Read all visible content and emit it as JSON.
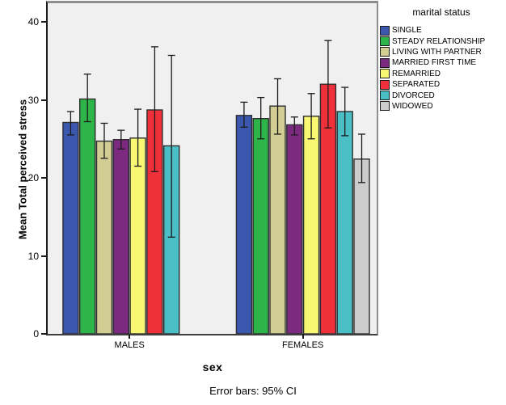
{
  "chart_data": {
    "type": "bar",
    "title": "",
    "xlabel": "sex",
    "ylabel": "Mean Total perceived stress",
    "caption": "Error bars: 95% CI",
    "legend_title": "marital status",
    "legend_position": "right",
    "grid": false,
    "plot_bg_color": "#F0F0F0",
    "axis_color": "#1a1a1a",
    "bar_outline_color": "#2e2e2e",
    "error_bar_color": "#1a1a1a",
    "ylim": [
      0,
      42
    ],
    "yticks": [
      0,
      10,
      20,
      30,
      40
    ],
    "categories": [
      "MALES",
      "FEMALES"
    ],
    "series": [
      {
        "name": "SINGLE",
        "color": "#3C57AE",
        "values": [
          27.1,
          28.0
        ],
        "ci_low": [
          25.5,
          26.5
        ],
        "ci_high": [
          28.5,
          29.7
        ]
      },
      {
        "name": "STEADY RELATIONSHIP",
        "color": "#2EB54A",
        "values": [
          30.1,
          27.6
        ],
        "ci_low": [
          27.2,
          25.0
        ],
        "ci_high": [
          33.3,
          30.3
        ]
      },
      {
        "name": "LIVING WITH PARTNER",
        "color": "#D2CD93",
        "values": [
          24.7,
          29.2
        ],
        "ci_low": [
          22.5,
          25.6
        ],
        "ci_high": [
          27.0,
          32.7
        ]
      },
      {
        "name": "MARRIED FIRST TIME",
        "color": "#7C2A80",
        "values": [
          24.9,
          26.8
        ],
        "ci_low": [
          23.7,
          25.5
        ],
        "ci_high": [
          26.1,
          27.8
        ]
      },
      {
        "name": "REMARRIED",
        "color": "#FAF873",
        "values": [
          25.1,
          27.9
        ],
        "ci_low": [
          21.5,
          25.0
        ],
        "ci_high": [
          28.8,
          30.8
        ]
      },
      {
        "name": "SEPARATED",
        "color": "#EF2F3A",
        "values": [
          28.7,
          32.0
        ],
        "ci_low": [
          20.8,
          26.4
        ],
        "ci_high": [
          36.8,
          37.6
        ]
      },
      {
        "name": "DIVORCED",
        "color": "#4AC0C6",
        "values": [
          24.1,
          28.5
        ],
        "ci_low": [
          12.4,
          25.4
        ],
        "ci_high": [
          35.7,
          31.6
        ]
      },
      {
        "name": "WIDOWED",
        "color": "#CCCCCC",
        "values": [
          null,
          22.4
        ],
        "ci_low": [
          null,
          19.4
        ],
        "ci_high": [
          null,
          25.6
        ]
      }
    ]
  }
}
